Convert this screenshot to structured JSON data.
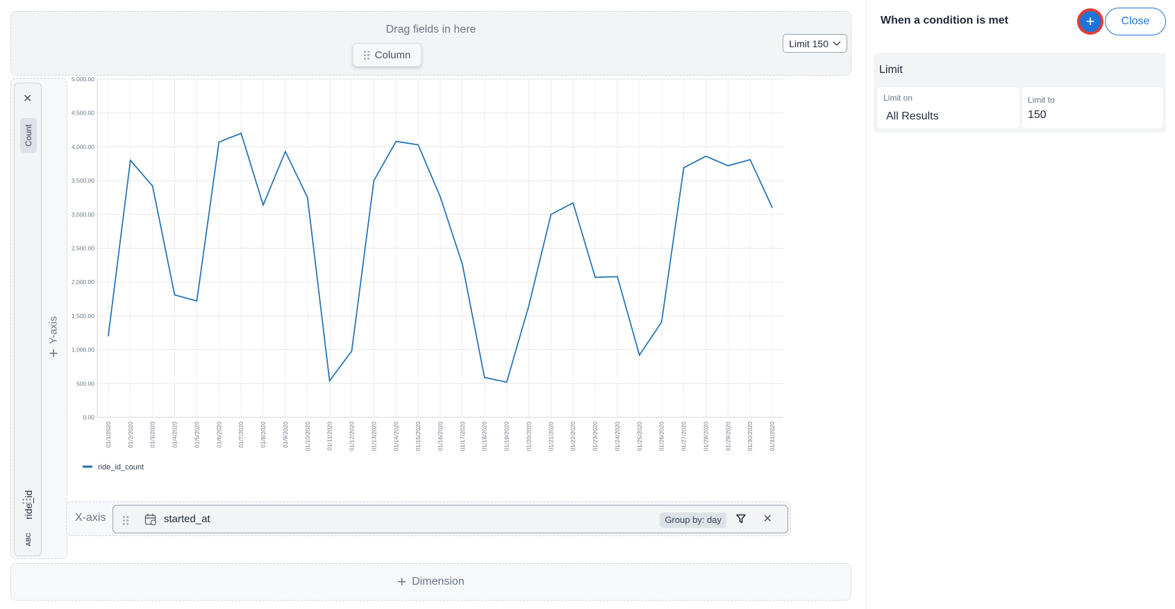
{
  "drop_area": {
    "hint": "Drag fields in here",
    "column_chip": "Column"
  },
  "limit_dropdown": {
    "label": "Limit 150"
  },
  "y_axis": {
    "measure_label": "Count",
    "field_label": "ride_id",
    "type_label": "ABC",
    "add_label": "Y-axis"
  },
  "x_axis": {
    "label": "X-axis",
    "field": "started_at",
    "group_by": "Group by: day"
  },
  "dimension": {
    "label": "Dimension"
  },
  "right_panel": {
    "title": "When a condition is met",
    "close_label": "Close",
    "limit_section": {
      "title": "Limit",
      "limit_on_label": "Limit on",
      "limit_on_value": "All Results",
      "limit_to_label": "Limit to",
      "limit_to_value": "150"
    }
  },
  "colors": {
    "accent": "#1e73d9",
    "series": "#1f6fb2",
    "highlight": "#e53935"
  },
  "chart_data": {
    "type": "line",
    "x": [
      "01/1/2020",
      "01/2/2020",
      "01/3/2020",
      "01/4/2020",
      "01/5/2020",
      "01/6/2020",
      "01/7/2020",
      "01/8/2020",
      "01/9/2020",
      "01/10/2020",
      "01/11/2020",
      "01/12/2020",
      "01/13/2020",
      "01/14/2020",
      "01/15/2020",
      "01/16/2020",
      "01/17/2020",
      "01/18/2020",
      "01/19/2020",
      "01/20/2020",
      "01/21/2020",
      "01/22/2020",
      "01/23/2020",
      "01/24/2020",
      "01/25/2020",
      "01/26/2020",
      "01/27/2020",
      "01/28/2020",
      "01/29/2020",
      "01/30/2020",
      "01/31/2020"
    ],
    "series": [
      {
        "name": "ride_id_count",
        "values": [
          1200,
          3800,
          3420,
          1810,
          1720,
          4070,
          4200,
          3140,
          3930,
          3250,
          540,
          980,
          3500,
          4080,
          4030,
          3260,
          2260,
          590,
          520,
          1650,
          3000,
          3170,
          2070,
          2080,
          920,
          1410,
          3690,
          3860,
          3720,
          3810,
          3100
        ]
      }
    ],
    "yticks": [
      "0.00",
      "500.00",
      "1,000.00",
      "1,500.00",
      "2,000.00",
      "2,500.00",
      "3,000.00",
      "3,500.00",
      "4,000.00",
      "4,500.00",
      "5,000.00"
    ],
    "ylim": [
      0,
      5000
    ],
    "grid": true,
    "legend": "bottom-left"
  }
}
